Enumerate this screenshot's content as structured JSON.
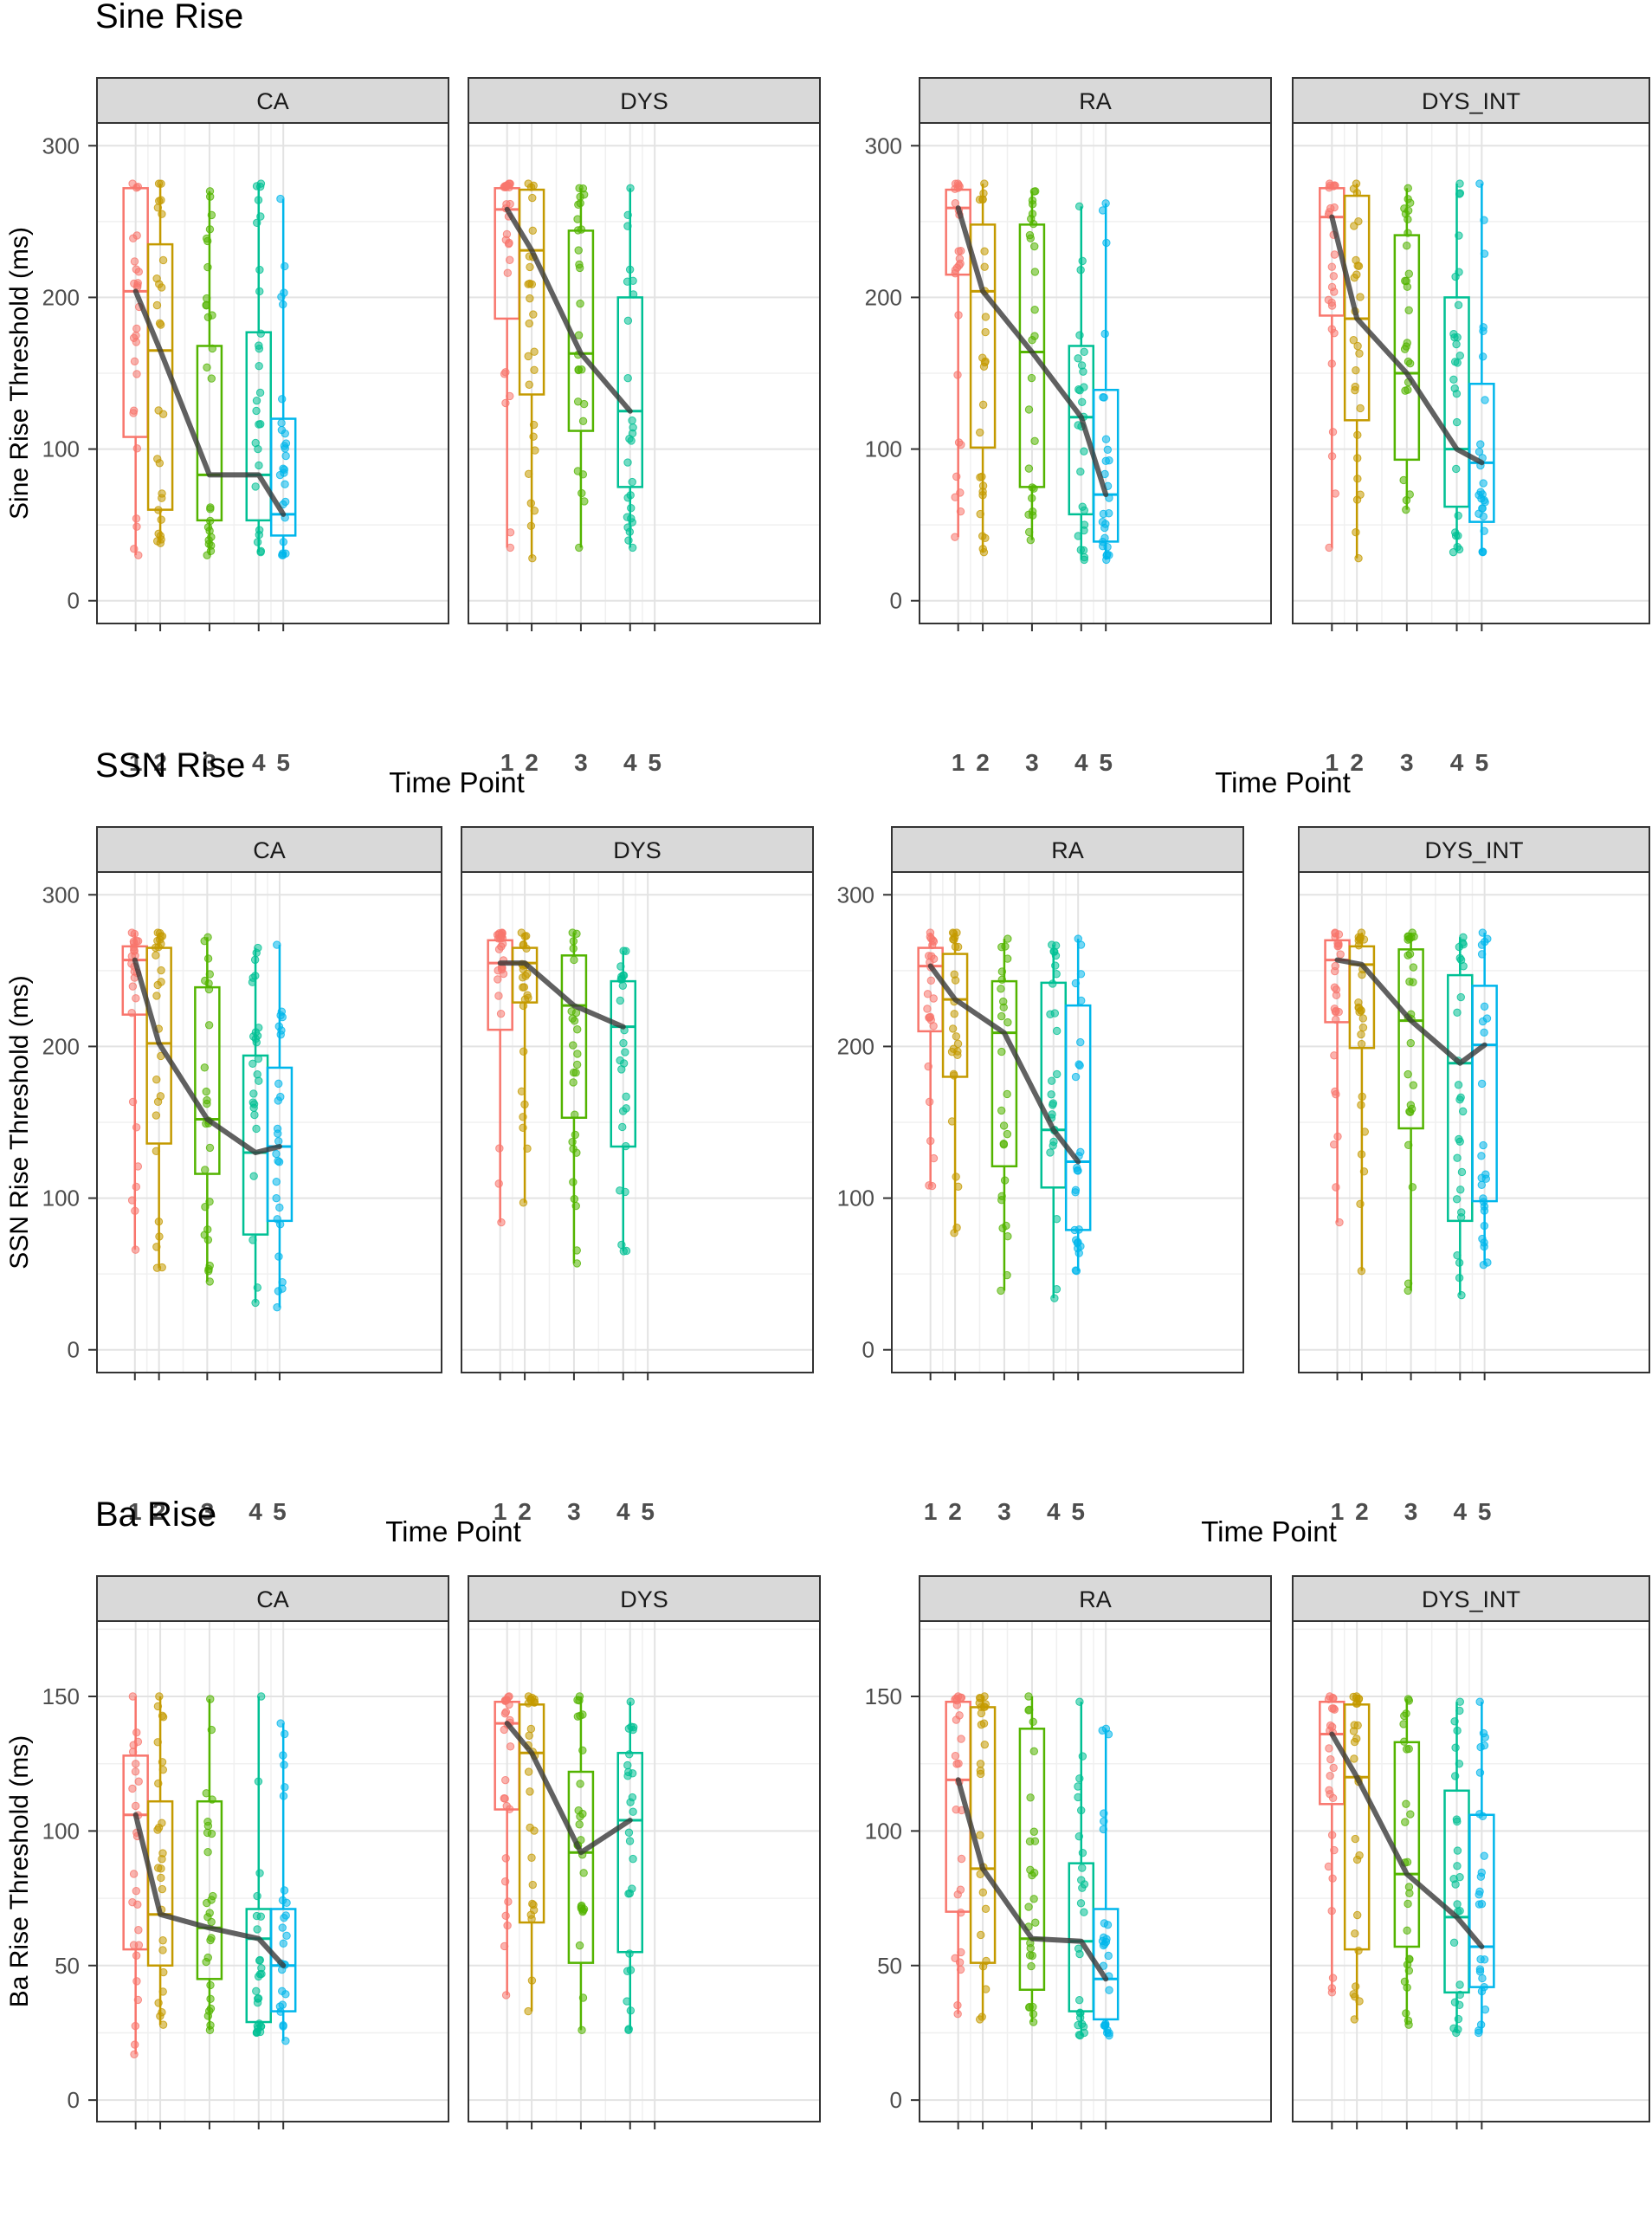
{
  "figure": {
    "x_axis_title": "Time Point",
    "time_points": [
      "1",
      "2",
      "3",
      "4",
      "5"
    ],
    "colors": [
      "#F8766D",
      "#C49A00",
      "#53B400",
      "#00C094",
      "#00B6EB"
    ],
    "median_line_color": "#3a3a3a"
  },
  "chart_data": [
    {
      "type": "boxplot",
      "title": "Sine Rise",
      "ylabel": "Sine Rise Threshold (ms)",
      "xlabel": "Time Point",
      "ylim": [
        -15,
        315
      ],
      "yticks": [
        0,
        100,
        200,
        300
      ],
      "facets": [
        {
          "label": "CA",
          "boxes": [
            {
              "tp": 1,
              "q1": 108,
              "median": 204,
              "q3": 272,
              "min": 30,
              "max": 275
            },
            {
              "tp": 2,
              "q1": 60,
              "median": 165,
              "q3": 235,
              "min": 38,
              "max": 275
            },
            {
              "tp": 3,
              "q1": 53,
              "median": 83,
              "q3": 168,
              "min": 30,
              "max": 270
            },
            {
              "tp": 4,
              "q1": 53,
              "median": 83,
              "q3": 177,
              "min": 32,
              "max": 275
            },
            {
              "tp": 5,
              "q1": 43,
              "median": 57,
              "q3": 120,
              "min": 30,
              "max": 265
            }
          ]
        },
        {
          "label": "DYS",
          "boxes": [
            {
              "tp": 1,
              "q1": 186,
              "median": 258,
              "q3": 272,
              "min": 35,
              "max": 275
            },
            {
              "tp": 2,
              "q1": 136,
              "median": 231,
              "q3": 271,
              "min": 28,
              "max": 275
            },
            {
              "tp": 3,
              "q1": 112,
              "median": 163,
              "q3": 244,
              "min": 35,
              "max": 272
            },
            {
              "tp": 4,
              "q1": 75,
              "median": 125,
              "q3": 200,
              "min": 35,
              "max": 272
            }
          ]
        },
        {
          "label": "RA",
          "boxes": [
            {
              "tp": 1,
              "q1": 215,
              "median": 259,
              "q3": 271,
              "min": 42,
              "max": 275
            },
            {
              "tp": 2,
              "q1": 101,
              "median": 204,
              "q3": 248,
              "min": 32,
              "max": 275
            },
            {
              "tp": 3,
              "q1": 75,
              "median": 164,
              "q3": 248,
              "min": 40,
              "max": 270
            },
            {
              "tp": 4,
              "q1": 57,
              "median": 121,
              "q3": 168,
              "min": 27,
              "max": 260
            },
            {
              "tp": 5,
              "q1": 39,
              "median": 70,
              "q3": 139,
              "min": 27,
              "max": 262
            }
          ]
        },
        {
          "label": "DYS_INT",
          "boxes": [
            {
              "tp": 1,
              "q1": 188,
              "median": 253,
              "q3": 272,
              "min": 35,
              "max": 275
            },
            {
              "tp": 2,
              "q1": 119,
              "median": 186,
              "q3": 267,
              "min": 28,
              "max": 275
            },
            {
              "tp": 3,
              "q1": 93,
              "median": 150,
              "q3": 241,
              "min": 60,
              "max": 272
            },
            {
              "tp": 4,
              "q1": 62,
              "median": 100,
              "q3": 200,
              "min": 32,
              "max": 275
            },
            {
              "tp": 5,
              "q1": 52,
              "median": 91,
              "q3": 143,
              "min": 32,
              "max": 275
            }
          ]
        }
      ]
    },
    {
      "type": "boxplot",
      "title": "SSN Rise",
      "ylabel": "SSN Rise Threshold (ms)",
      "xlabel": "Time Point",
      "ylim": [
        -15,
        315
      ],
      "yticks": [
        0,
        100,
        200,
        300
      ],
      "facets": [
        {
          "label": "CA",
          "boxes": [
            {
              "tp": 1,
              "q1": 221,
              "median": 257,
              "q3": 266,
              "min": 66,
              "max": 275
            },
            {
              "tp": 2,
              "q1": 136,
              "median": 202,
              "q3": 265,
              "min": 54,
              "max": 275
            },
            {
              "tp": 3,
              "q1": 116,
              "median": 152,
              "q3": 239,
              "min": 45,
              "max": 272
            },
            {
              "tp": 4,
              "q1": 76,
              "median": 130,
              "q3": 194,
              "min": 31,
              "max": 265
            },
            {
              "tp": 5,
              "q1": 85,
              "median": 134,
              "q3": 186,
              "min": 28,
              "max": 267
            }
          ]
        },
        {
          "label": "DYS",
          "boxes": [
            {
              "tp": 1,
              "q1": 211,
              "median": 255,
              "q3": 270,
              "min": 84,
              "max": 275
            },
            {
              "tp": 2,
              "q1": 229,
              "median": 255,
              "q3": 265,
              "min": 97,
              "max": 275
            },
            {
              "tp": 3,
              "q1": 153,
              "median": 227,
              "q3": 260,
              "min": 57,
              "max": 275
            },
            {
              "tp": 4,
              "q1": 134,
              "median": 213,
              "q3": 243,
              "min": 65,
              "max": 263
            }
          ]
        },
        {
          "label": "RA",
          "boxes": [
            {
              "tp": 1,
              "q1": 210,
              "median": 253,
              "q3": 265,
              "min": 108,
              "max": 275
            },
            {
              "tp": 2,
              "q1": 180,
              "median": 231,
              "q3": 261,
              "min": 77,
              "max": 275
            },
            {
              "tp": 3,
              "q1": 121,
              "median": 209,
              "q3": 243,
              "min": 39,
              "max": 271
            },
            {
              "tp": 4,
              "q1": 107,
              "median": 145,
              "q3": 242,
              "min": 34,
              "max": 267
            },
            {
              "tp": 5,
              "q1": 79,
              "median": 124,
              "q3": 227,
              "min": 52,
              "max": 271
            }
          ]
        },
        {
          "label": "DYS_INT",
          "boxes": [
            {
              "tp": 1,
              "q1": 216,
              "median": 257,
              "q3": 270,
              "min": 84,
              "max": 275
            },
            {
              "tp": 2,
              "q1": 199,
              "median": 254,
              "q3": 266,
              "min": 52,
              "max": 275
            },
            {
              "tp": 3,
              "q1": 146,
              "median": 217,
              "q3": 264,
              "min": 39,
              "max": 275
            },
            {
              "tp": 4,
              "q1": 85,
              "median": 189,
              "q3": 247,
              "min": 36,
              "max": 272
            },
            {
              "tp": 5,
              "q1": 98,
              "median": 201,
              "q3": 240,
              "min": 56,
              "max": 275
            }
          ]
        }
      ]
    },
    {
      "type": "boxplot",
      "title": "Ba Rise",
      "ylabel": "Ba Rise Threshold (ms)",
      "xlabel": "Time Point",
      "ylim": [
        -8,
        178
      ],
      "yticks": [
        0,
        50,
        100,
        150
      ],
      "facets": [
        {
          "label": "CA",
          "boxes": [
            {
              "tp": 1,
              "q1": 56,
              "median": 106,
              "q3": 128,
              "min": 17,
              "max": 150
            },
            {
              "tp": 2,
              "q1": 50,
              "median": 69,
              "q3": 111,
              "min": 28,
              "max": 150
            },
            {
              "tp": 3,
              "q1": 45,
              "median": 64,
              "q3": 111,
              "min": 26,
              "max": 149
            },
            {
              "tp": 4,
              "q1": 29,
              "median": 60,
              "q3": 71,
              "min": 25,
              "max": 150
            },
            {
              "tp": 5,
              "q1": 33,
              "median": 50,
              "q3": 71,
              "min": 22,
              "max": 140
            }
          ]
        },
        {
          "label": "DYS",
          "boxes": [
            {
              "tp": 1,
              "q1": 108,
              "median": 140,
              "q3": 148,
              "min": 39,
              "max": 150
            },
            {
              "tp": 2,
              "q1": 66,
              "median": 129,
              "q3": 147,
              "min": 33,
              "max": 150
            },
            {
              "tp": 3,
              "q1": 51,
              "median": 92,
              "q3": 122,
              "min": 26,
              "max": 150
            },
            {
              "tp": 4,
              "q1": 55,
              "median": 104,
              "q3": 129,
              "min": 26,
              "max": 148
            }
          ]
        },
        {
          "label": "RA",
          "boxes": [
            {
              "tp": 1,
              "q1": 70,
              "median": 119,
              "q3": 148,
              "min": 32,
              "max": 150
            },
            {
              "tp": 2,
              "q1": 51,
              "median": 86,
              "q3": 146,
              "min": 30,
              "max": 150
            },
            {
              "tp": 3,
              "q1": 41,
              "median": 60,
              "q3": 138,
              "min": 29,
              "max": 150
            },
            {
              "tp": 4,
              "q1": 33,
              "median": 59,
              "q3": 88,
              "min": 24,
              "max": 148
            },
            {
              "tp": 5,
              "q1": 30,
              "median": 45,
              "q3": 71,
              "min": 24,
              "max": 138
            }
          ]
        },
        {
          "label": "DYS_INT",
          "boxes": [
            {
              "tp": 1,
              "q1": 110,
              "median": 136,
              "q3": 148,
              "min": 40,
              "max": 150
            },
            {
              "tp": 2,
              "q1": 56,
              "median": 120,
              "q3": 147,
              "min": 30,
              "max": 150
            },
            {
              "tp": 3,
              "q1": 57,
              "median": 84,
              "q3": 133,
              "min": 28,
              "max": 149
            },
            {
              "tp": 4,
              "q1": 40,
              "median": 68,
              "q3": 115,
              "min": 25,
              "max": 148
            },
            {
              "tp": 5,
              "q1": 42,
              "median": 57,
              "q3": 106,
              "min": 25,
              "max": 148
            }
          ]
        }
      ]
    }
  ]
}
